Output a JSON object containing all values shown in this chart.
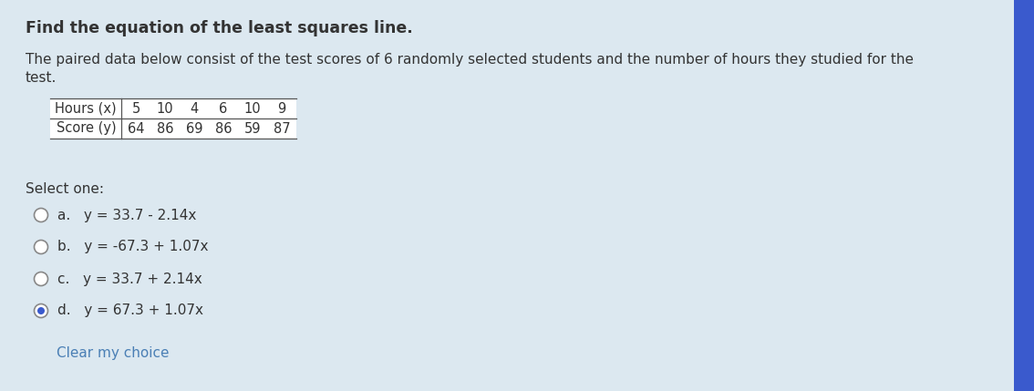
{
  "background_color": "#dce8f0",
  "sidebar_color": "#3a5acd",
  "title": "Find the equation of the least squares line.",
  "paragraph1": "The paired data below consist of the test scores of 6 randomly selected students and the number of hours they studied for the",
  "paragraph2": "test.",
  "table_headers": [
    "Hours (x)",
    "5",
    "10",
    "4",
    "6",
    "10",
    "9"
  ],
  "table_row2": [
    "Score (y)",
    "64",
    "86",
    "69",
    "86",
    "59",
    "87"
  ],
  "select_one_label": "Select one:",
  "options": [
    {
      "letter": "a.",
      "text": "y = 33.7 - 2.14x",
      "selected": false
    },
    {
      "letter": "b.",
      "text": "y = -67.3 + 1.07x",
      "selected": false
    },
    {
      "letter": "c.",
      "text": "y = 33.7 + 2.14x",
      "selected": false
    },
    {
      "letter": "d.",
      "text": "y = 67.3 + 1.07x",
      "selected": true
    }
  ],
  "clear_label": "Clear my choice",
  "clear_color": "#4a7fb5",
  "text_color": "#333333",
  "table_bg": "#ffffff",
  "table_line_color": "#555555",
  "font_size_title": 12.5,
  "font_size_body": 11,
  "font_size_table": 10.5
}
